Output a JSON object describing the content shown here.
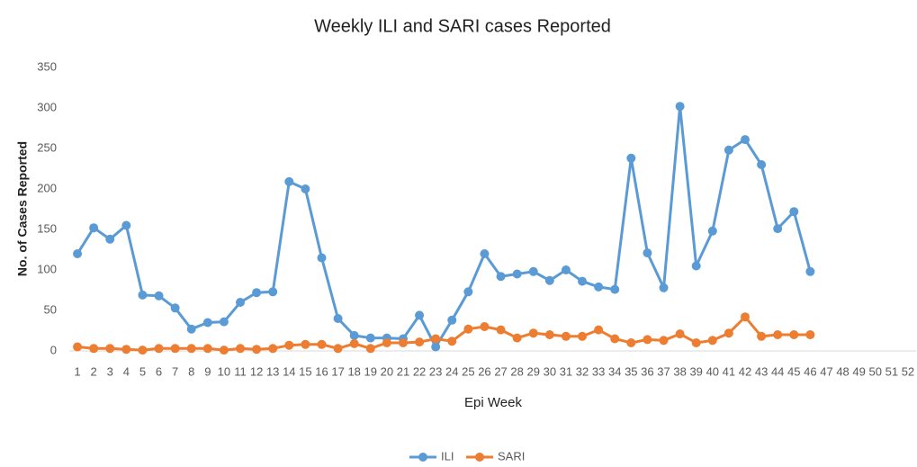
{
  "chart_data": {
    "type": "line",
    "title": "Weekly ILI and SARI cases Reported",
    "x_label": "Epi Week",
    "y_label": "No. of Cases Reported",
    "categories": [
      "1",
      "2",
      "3",
      "4",
      "5",
      "6",
      "7",
      "8",
      "9",
      "10",
      "11",
      "12",
      "13",
      "14",
      "15",
      "16",
      "17",
      "18",
      "19",
      "20",
      "21",
      "22",
      "23",
      "24",
      "25",
      "26",
      "27",
      "28",
      "29",
      "30",
      "31",
      "32",
      "33",
      "34",
      "35",
      "36",
      "37",
      "38",
      "39",
      "40",
      "41",
      "42",
      "43",
      "44",
      "45",
      "46",
      "47",
      "48",
      "49",
      "50",
      "51",
      "52"
    ],
    "series": [
      {
        "name": "ILI",
        "color": "#5b9bd5",
        "values": [
          120,
          152,
          138,
          155,
          69,
          68,
          53,
          27,
          35,
          36,
          60,
          72,
          73,
          209,
          200,
          115,
          40,
          19,
          16,
          16,
          15,
          44,
          5,
          38,
          73,
          120,
          92,
          95,
          98,
          87,
          100,
          86,
          79,
          76,
          238,
          121,
          78,
          302,
          105,
          148,
          248,
          261,
          230,
          151,
          172,
          98,
          null,
          null,
          null,
          null,
          null,
          null
        ]
      },
      {
        "name": "SARI",
        "color": "#ed7d31",
        "values": [
          5,
          3,
          3,
          2,
          1,
          3,
          3,
          3,
          3,
          1,
          3,
          2,
          3,
          7,
          8,
          8,
          3,
          9,
          3,
          10,
          10,
          11,
          15,
          12,
          27,
          30,
          26,
          16,
          22,
          20,
          18,
          18,
          26,
          15,
          10,
          14,
          13,
          21,
          10,
          13,
          22,
          42,
          18,
          20,
          20,
          20,
          null,
          null,
          null,
          null,
          null,
          null
        ]
      }
    ],
    "ylim": [
      0,
      350
    ],
    "yticks": [
      0,
      50,
      100,
      150,
      200,
      250,
      300,
      350
    ],
    "grid": false,
    "legend": "bottom"
  }
}
